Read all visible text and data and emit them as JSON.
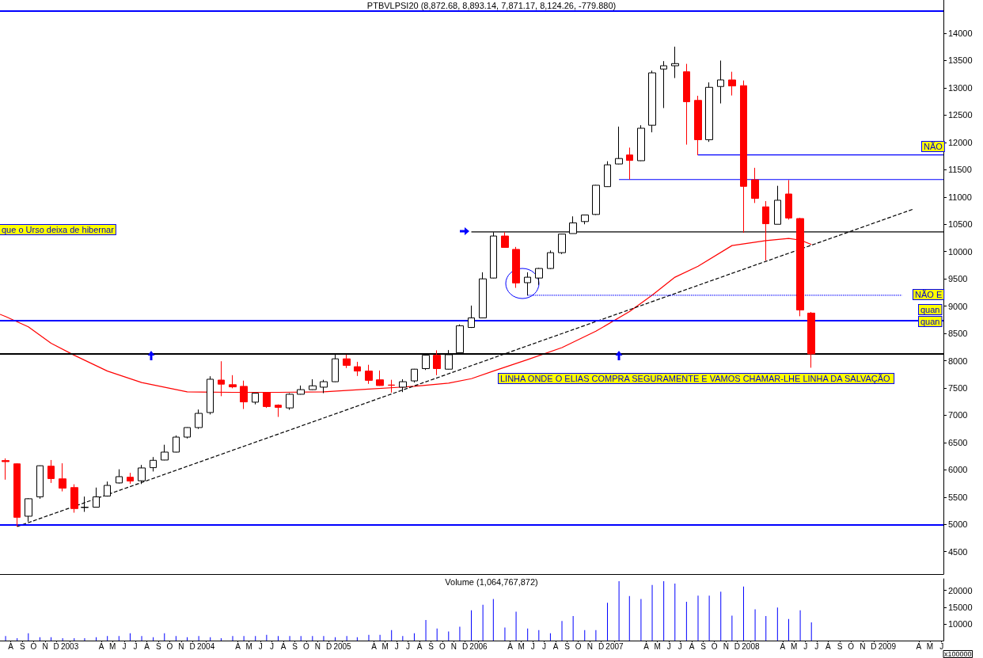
{
  "chart_data": [
    {
      "type": "candlestick",
      "title": "PTBVLPSI20 (8,872.68, 8,893.14, 7,871.17, 8,124.26, -779.880)",
      "xlim": [
        "2002-07-17",
        "2009-06-20"
      ],
      "ylim": [
        4090,
        14610
      ],
      "yticks": [
        4500,
        5000,
        5500,
        6000,
        6500,
        7000,
        7500,
        8000,
        8500,
        9000,
        9500,
        10000,
        10500,
        11000,
        11500,
        12000,
        12500,
        13000,
        13500,
        14000
      ],
      "tick_labels": "y",
      "marker": "none",
      "series": [
        {
          "type": "candlestick",
          "x": [
            "2002-08",
            "2002-09",
            "2002-10",
            "2002-11",
            "2002-12",
            "2003-01",
            "2003-02",
            "2003-03",
            "2003-04",
            "2003-05",
            "2003-06",
            "2003-07",
            "2003-08",
            "2003-09",
            "2003-10",
            "2003-11",
            "2003-12",
            "2004-01",
            "2004-02",
            "2004-03",
            "2004-04",
            "2004-05",
            "2004-06",
            "2004-07",
            "2004-08",
            "2004-09",
            "2004-10",
            "2004-11",
            "2004-12",
            "2005-01",
            "2005-02",
            "2005-03",
            "2005-04",
            "2005-05",
            "2005-06",
            "2005-07",
            "2005-08",
            "2005-09",
            "2005-10",
            "2005-11",
            "2005-12",
            "2006-01",
            "2006-02",
            "2006-03",
            "2006-04",
            "2006-05",
            "2006-06",
            "2006-07",
            "2006-08",
            "2006-09",
            "2006-10",
            "2006-11",
            "2006-12",
            "2007-01",
            "2007-02",
            "2007-03",
            "2007-04",
            "2007-05",
            "2007-06",
            "2007-07",
            "2007-08",
            "2007-09",
            "2007-10",
            "2007-11",
            "2007-12",
            "2008-01",
            "2008-02",
            "2008-03",
            "2008-04",
            "2008-05",
            "2008-06",
            "2008-07"
          ],
          "ohlc": [
            [
              6170,
              6210,
              5820,
              6150
            ],
            [
              6110,
              6120,
              4960,
              5130
            ],
            [
              5150,
              5480,
              5050,
              5470
            ],
            [
              5505,
              6080,
              5470,
              6075
            ],
            [
              6067,
              6180,
              5760,
              5840
            ],
            [
              5835,
              6120,
              5605,
              5665
            ],
            [
              5675,
              5735,
              5215,
              5290
            ],
            [
              5310,
              5510,
              5230,
              5315
            ],
            [
              5316,
              5675,
              5310,
              5505
            ],
            [
              5520,
              5785,
              5510,
              5715
            ],
            [
              5760,
              6010,
              5750,
              5875
            ],
            [
              5865,
              5945,
              5745,
              5795
            ],
            [
              5800,
              6090,
              5740,
              6035
            ],
            [
              6040,
              6235,
              5970,
              6175
            ],
            [
              6180,
              6460,
              6175,
              6325
            ],
            [
              6325,
              6630,
              6320,
              6600
            ],
            [
              6600,
              6780,
              6575,
              6775
            ],
            [
              6775,
              7105,
              6750,
              7035
            ],
            [
              7050,
              7715,
              7015,
              7660
            ],
            [
              7645,
              7990,
              7350,
              7570
            ],
            [
              7560,
              7735,
              7495,
              7520
            ],
            [
              7530,
              7635,
              7115,
              7245
            ],
            [
              7240,
              7410,
              7200,
              7405
            ],
            [
              7415,
              7420,
              7135,
              7160
            ],
            [
              7185,
              7200,
              6970,
              7145
            ],
            [
              7135,
              7405,
              7100,
              7385
            ],
            [
              7385,
              7545,
              7380,
              7470
            ],
            [
              7470,
              7660,
              7465,
              7540
            ],
            [
              7515,
              7650,
              7405,
              7615
            ],
            [
              7615,
              8110,
              7610,
              8035
            ],
            [
              8035,
              8110,
              7865,
              7915
            ],
            [
              7890,
              7980,
              7720,
              7810
            ],
            [
              7810,
              7925,
              7575,
              7640
            ],
            [
              7650,
              7820,
              7540,
              7545
            ],
            [
              7555,
              7650,
              7415,
              7550
            ],
            [
              7515,
              7660,
              7425,
              7615
            ],
            [
              7630,
              7850,
              7600,
              7845
            ],
            [
              7855,
              8105,
              7830,
              8100
            ],
            [
              8100,
              8190,
              7735,
              7855
            ],
            [
              7845,
              8195,
              7840,
              8110
            ],
            [
              8145,
              8665,
              8140,
              8640
            ],
            [
              8610,
              9010,
              8600,
              8785
            ],
            [
              8785,
              9620,
              8780,
              9500
            ],
            [
              9515,
              10355,
              9510,
              10285
            ],
            [
              10285,
              10355,
              10070,
              10075
            ],
            [
              10040,
              10085,
              9335,
              9425
            ],
            [
              9430,
              9620,
              9195,
              9530
            ],
            [
              9515,
              9700,
              9390,
              9690
            ],
            [
              9690,
              10020,
              9680,
              9980
            ],
            [
              9980,
              10325,
              9955,
              10320
            ],
            [
              10330,
              10645,
              10330,
              10525
            ],
            [
              10550,
              10675,
              10500,
              10670
            ],
            [
              10680,
              11220,
              10670,
              11215
            ],
            [
              11190,
              11655,
              11185,
              11590
            ],
            [
              11605,
              12290,
              11600,
              11705
            ],
            [
              11770,
              11905,
              11320,
              11670
            ],
            [
              11665,
              12315,
              11660,
              12260
            ],
            [
              12315,
              13315,
              12185,
              13275
            ],
            [
              13345,
              13490,
              12630,
              13405
            ],
            [
              13405,
              13755,
              13180,
              13445
            ],
            [
              13295,
              13440,
              11960,
              12745
            ],
            [
              12770,
              12855,
              11765,
              12050
            ],
            [
              12050,
              13100,
              12010,
              13010
            ],
            [
              13025,
              13500,
              12715,
              13145
            ],
            [
              13145,
              13295,
              12860,
              13035
            ],
            [
              13040,
              13135,
              10345,
              11195
            ],
            [
              11315,
              11535,
              10890,
              10975
            ],
            [
              10820,
              10925,
              9835,
              10510
            ],
            [
              10500,
              11205,
              10500,
              10940
            ],
            [
              11055,
              11310,
              10585,
              10615
            ],
            [
              10605,
              10620,
              8815,
              8930
            ],
            [
              8872.68,
              8893.14,
              7871.17,
              8124.26
            ]
          ],
          "colors": [
            "#ff0000",
            "#ff0000",
            "#ffffff",
            "#ffffff",
            "#ff0000",
            "#ff0000",
            "#ff0000",
            "#ffffff",
            "#ffffff",
            "#ffffff",
            "#ffffff",
            "#ff0000",
            "#ffffff",
            "#ffffff",
            "#ffffff",
            "#ffffff",
            "#ffffff",
            "#ffffff",
            "#ffffff",
            "#ff0000",
            "#ff0000",
            "#ff0000",
            "#ffffff",
            "#ff0000",
            "#ff0000",
            "#ffffff",
            "#ffffff",
            "#ffffff",
            "#ffffff",
            "#ffffff",
            "#ff0000",
            "#ff0000",
            "#ff0000",
            "#ff0000",
            "#ff0000",
            "#ffffff",
            "#ffffff",
            "#ffffff",
            "#ff0000",
            "#ffffff",
            "#ffffff",
            "#ffffff",
            "#ffffff",
            "#ffffff",
            "#ff0000",
            "#ff0000",
            "#ffffff",
            "#ffffff",
            "#ffffff",
            "#ffffff",
            "#ffffff",
            "#ffffff",
            "#ffffff",
            "#ffffff",
            "#ffffff",
            "#ff0000",
            "#ffffff",
            "#ffffff",
            "#ffffff",
            "#ffffff",
            "#ff0000",
            "#ff0000",
            "#ffffff",
            "#ffffff",
            "#ff0000",
            "#ff0000",
            "#ff0000",
            "#ff0000",
            "#ffffff",
            "#ff0000",
            "#ff0000",
            "#ff0000"
          ]
        },
        {
          "type": "line",
          "color": "#ff0000",
          "x": [
            "2002-07-17",
            "2002-08",
            "2002-10",
            "2002-12",
            "2003-02",
            "2003-05",
            "2003-08",
            "2003-12",
            "2004-04",
            "2004-08",
            "2004-12",
            "2005-04",
            "2005-08",
            "2005-11",
            "2006-01",
            "2006-03",
            "2006-06",
            "2006-09",
            "2006-12",
            "2007-03",
            "2007-05",
            "2007-07",
            "2007-09",
            "2007-12",
            "2008-03",
            "2008-05",
            "2008-06",
            "2008-07"
          ],
          "values": [
            8850,
            8810,
            8620,
            8320,
            8100,
            7810,
            7600,
            7430,
            7420,
            7420,
            7430,
            7480,
            7530,
            7590,
            7670,
            7810,
            8020,
            8240,
            8540,
            8900,
            9200,
            9530,
            9730,
            10110,
            10200,
            10240,
            10210,
            10130
          ]
        },
        {
          "type": "line",
          "color": "#000000",
          "line_style": "dashed",
          "x": [
            "2002-09",
            "2009-04"
          ],
          "values": [
            4960,
            10780
          ]
        },
        {
          "type": "line",
          "color": "#000000",
          "x": [
            "2006-01",
            "2009-06-20"
          ],
          "values": [
            10360,
            10360
          ]
        },
        {
          "type": "line",
          "color": "#0000ff",
          "x": [
            "2007-09",
            "2009-06-20"
          ],
          "values": [
            11770,
            11770
          ]
        },
        {
          "type": "line",
          "color": "#0000ff",
          "x": [
            "2007-02",
            "2009-06-20"
          ],
          "values": [
            11320,
            11320
          ]
        },
        {
          "type": "line",
          "color": "#0000ff",
          "line_style": "dotted",
          "x": [
            "2006-06",
            "2009-03"
          ],
          "values": [
            9200,
            9200
          ]
        }
      ],
      "ref_lines": [
        {
          "axis": "y",
          "value": 14410,
          "color": "#0000ff"
        },
        {
          "axis": "y",
          "value": 8735,
          "color": "#0000ff"
        },
        {
          "axis": "y",
          "value": 8130,
          "color": "#000000"
        },
        {
          "axis": "y",
          "value": 5000,
          "color": "#0000ff"
        }
      ],
      "annotations": [
        "que o Urso deixa de hibernar",
        "NÃO",
        "NÃO E",
        "quan",
        "quan",
        "LINHA ONDE O ELIAS COMPRA SEGURAMENTE E VAMOS CHAMAR-LHE LINHA DA SALVAÇÃO"
      ]
    },
    {
      "type": "bar",
      "title": "Volume (1,064,767,872)",
      "ylabel": "x100000",
      "color": "#0000ff",
      "xlim": [
        "2002-07-17",
        "2009-06-20"
      ],
      "ylim": [
        5100,
        23400
      ],
      "yticks": [
        10000,
        15000,
        20000
      ],
      "x": [
        "2002-08",
        "2002-09",
        "2002-10",
        "2002-11",
        "2002-12",
        "2003-01",
        "2003-02",
        "2003-03",
        "2003-04",
        "2003-05",
        "2003-06",
        "2003-07",
        "2003-08",
        "2003-09",
        "2003-10",
        "2003-11",
        "2003-12",
        "2004-01",
        "2004-02",
        "2004-03",
        "2004-04",
        "2004-05",
        "2004-06",
        "2004-07",
        "2004-08",
        "2004-09",
        "2004-10",
        "2004-11",
        "2004-12",
        "2005-01",
        "2005-02",
        "2005-03",
        "2005-04",
        "2005-05",
        "2005-06",
        "2005-07",
        "2005-08",
        "2005-09",
        "2005-10",
        "2005-11",
        "2005-12",
        "2006-01",
        "2006-02",
        "2006-03",
        "2006-04",
        "2006-05",
        "2006-06",
        "2006-07",
        "2006-08",
        "2006-09",
        "2006-10",
        "2006-11",
        "2006-12",
        "2007-01",
        "2007-02",
        "2007-03",
        "2007-04",
        "2007-05",
        "2007-06",
        "2007-07",
        "2007-08",
        "2007-09",
        "2007-10",
        "2007-11",
        "2007-12",
        "2008-01",
        "2008-02",
        "2008-03",
        "2008-04",
        "2008-05",
        "2008-06",
        "2008-07"
      ],
      "values": [
        6500,
        5800,
        7300,
        6100,
        6100,
        5800,
        5800,
        5800,
        6100,
        6500,
        6500,
        7300,
        6500,
        6100,
        7300,
        6500,
        6100,
        6500,
        6100,
        5800,
        6500,
        6500,
        6500,
        6800,
        6500,
        6500,
        6500,
        6500,
        6500,
        6100,
        6500,
        6100,
        6800,
        6800,
        8200,
        6500,
        7300,
        11200,
        8700,
        7800,
        9200,
        14100,
        15700,
        17400,
        9000,
        13700,
        8700,
        8200,
        7300,
        10900,
        12400,
        8200,
        8200,
        16300,
        22700,
        18300,
        17400,
        21600,
        22700,
        22000,
        16600,
        18400,
        18400,
        19600,
        12500,
        21100,
        14400,
        12400,
        14900,
        11500,
        14100,
        10500
      ],
      "xticks": [
        {
          "value": "2002-08-15",
          "label": "A"
        },
        {
          "value": "2002-09-15",
          "label": "S"
        },
        {
          "value": "2002-10-15",
          "label": "O"
        },
        {
          "value": "2002-11-15",
          "label": "N"
        },
        {
          "value": "2002-12-15",
          "label": "D"
        },
        {
          "value": "2003-01-20",
          "label": "2003"
        },
        {
          "value": "2003-04-15",
          "label": "A"
        },
        {
          "value": "2003-05-15",
          "label": "M"
        },
        {
          "value": "2003-06-15",
          "label": "J"
        },
        {
          "value": "2003-07-15",
          "label": "J"
        },
        {
          "value": "2003-08-15",
          "label": "A"
        },
        {
          "value": "2003-09-15",
          "label": "S"
        },
        {
          "value": "2003-10-15",
          "label": "O"
        },
        {
          "value": "2003-11-15",
          "label": "N"
        },
        {
          "value": "2003-12-15",
          "label": "D"
        },
        {
          "value": "2004-01-20",
          "label": "2004"
        },
        {
          "value": "2004-04-15",
          "label": "A"
        },
        {
          "value": "2004-05-15",
          "label": "M"
        },
        {
          "value": "2004-06-15",
          "label": "J"
        },
        {
          "value": "2004-07-15",
          "label": "J"
        },
        {
          "value": "2004-08-15",
          "label": "A"
        },
        {
          "value": "2004-09-15",
          "label": "S"
        },
        {
          "value": "2004-10-15",
          "label": "O"
        },
        {
          "value": "2004-11-15",
          "label": "N"
        },
        {
          "value": "2004-12-15",
          "label": "D"
        },
        {
          "value": "2005-01-20",
          "label": "2005"
        },
        {
          "value": "2005-04-15",
          "label": "A"
        },
        {
          "value": "2005-05-15",
          "label": "M"
        },
        {
          "value": "2005-06-15",
          "label": "J"
        },
        {
          "value": "2005-07-15",
          "label": "J"
        },
        {
          "value": "2005-08-15",
          "label": "A"
        },
        {
          "value": "2005-09-15",
          "label": "S"
        },
        {
          "value": "2005-10-15",
          "label": "O"
        },
        {
          "value": "2005-11-15",
          "label": "N"
        },
        {
          "value": "2005-12-15",
          "label": "D"
        },
        {
          "value": "2006-01-20",
          "label": "2006"
        },
        {
          "value": "2006-04-15",
          "label": "A"
        },
        {
          "value": "2006-05-15",
          "label": "M"
        },
        {
          "value": "2006-06-15",
          "label": "J"
        },
        {
          "value": "2006-07-15",
          "label": "J"
        },
        {
          "value": "2006-08-15",
          "label": "A"
        },
        {
          "value": "2006-09-15",
          "label": "S"
        },
        {
          "value": "2006-10-15",
          "label": "O"
        },
        {
          "value": "2006-11-15",
          "label": "N"
        },
        {
          "value": "2006-12-15",
          "label": "D"
        },
        {
          "value": "2007-01-20",
          "label": "2007"
        },
        {
          "value": "2007-04-15",
          "label": "A"
        },
        {
          "value": "2007-05-15",
          "label": "M"
        },
        {
          "value": "2007-06-15",
          "label": "J"
        },
        {
          "value": "2007-07-15",
          "label": "J"
        },
        {
          "value": "2007-08-15",
          "label": "A"
        },
        {
          "value": "2007-09-15",
          "label": "S"
        },
        {
          "value": "2007-10-15",
          "label": "O"
        },
        {
          "value": "2007-11-15",
          "label": "N"
        },
        {
          "value": "2007-12-15",
          "label": "D"
        },
        {
          "value": "2008-01-20",
          "label": "2008"
        },
        {
          "value": "2008-04-15",
          "label": "A"
        },
        {
          "value": "2008-05-15",
          "label": "M"
        },
        {
          "value": "2008-06-15",
          "label": "J"
        },
        {
          "value": "2008-07-15",
          "label": "J"
        },
        {
          "value": "2008-08-15",
          "label": "A"
        },
        {
          "value": "2008-09-15",
          "label": "S"
        },
        {
          "value": "2008-10-15",
          "label": "O"
        },
        {
          "value": "2008-11-15",
          "label": "N"
        },
        {
          "value": "2008-12-15",
          "label": "D"
        },
        {
          "value": "2009-01-20",
          "label": "2009"
        },
        {
          "value": "2009-04-15",
          "label": "A"
        },
        {
          "value": "2009-05-15",
          "label": "M"
        },
        {
          "value": "2009-06-15",
          "label": "J"
        }
      ]
    }
  ]
}
